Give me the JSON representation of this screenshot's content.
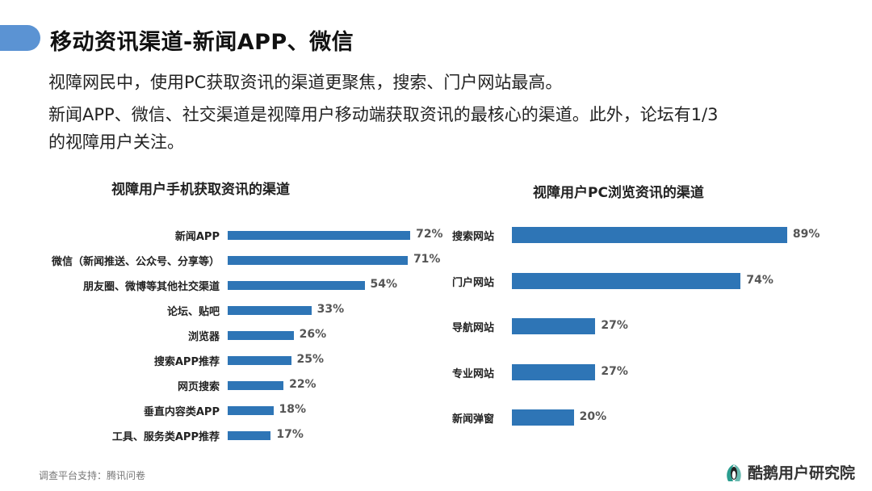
{
  "header": {
    "title": "移动资讯渠道-新闻APP、微信"
  },
  "body": {
    "line1": "视障网民中，使用PC获取资讯的渠道更聚焦，搜索、门户网站最高。",
    "line2": "新闻APP、微信、社交渠道是视障用户移动端获取资讯的最核心的渠道。此外，论坛有1/3",
    "line3": "的视障用户关注。"
  },
  "chart_data": [
    {
      "type": "bar",
      "orientation": "horizontal",
      "title": "视障用户手机获取资讯的渠道",
      "categories": [
        "新闻APP",
        "微信（新闻推送、公众号、分享等）",
        "朋友圈、微博等其他社交渠道",
        "论坛、贴吧",
        "浏览器",
        "搜索APP推荐",
        "网页搜索",
        "垂直内容类APP",
        "工具、服务类APP推荐"
      ],
      "values": [
        72,
        71,
        54,
        33,
        26,
        25,
        22,
        18,
        17
      ],
      "labels": [
        "72%",
        "71%",
        "54%",
        "33%",
        "26%",
        "25%",
        "22%",
        "18%",
        "17%"
      ],
      "unit": "%",
      "color": "#2e75b6"
    },
    {
      "type": "bar",
      "orientation": "horizontal",
      "title": "视障用户PC浏览资讯的渠道",
      "categories": [
        "搜索网站",
        "门户网站",
        "导航网站",
        "专业网站",
        "新闻弹窗"
      ],
      "values": [
        89,
        74,
        27,
        27,
        20
      ],
      "labels": [
        "89%",
        "74%",
        "27%",
        "27%",
        "20%"
      ],
      "unit": "%",
      "color": "#2e75b6"
    }
  ],
  "footer": {
    "source": "调查平台支持：腾讯问卷",
    "brand": "酷鹅用户研究院"
  }
}
